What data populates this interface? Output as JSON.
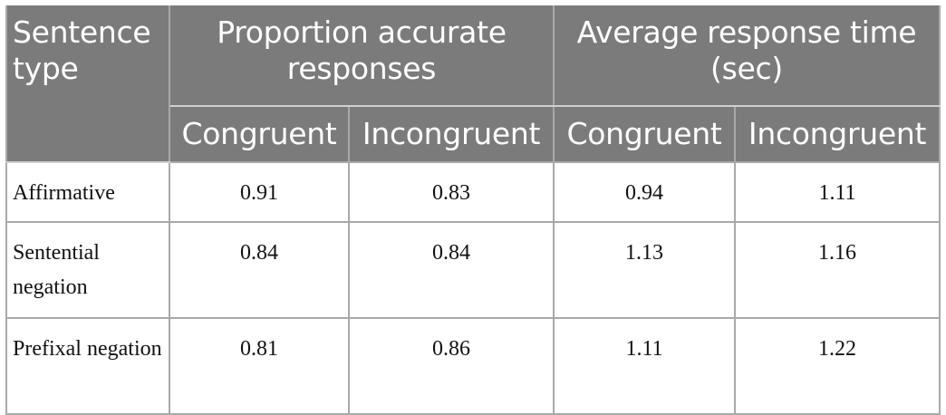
{
  "table": {
    "header": {
      "sentence_type": "Sentence type",
      "accuracy_group": "Proportion accurate responses",
      "rt_group": "Average response time (sec)",
      "sub": {
        "acc_congruent": "Congruent",
        "acc_incongruent": "Incongruent",
        "rt_congruent": "Congruent",
        "rt_incongruent": "Incongruent"
      }
    },
    "rows": [
      {
        "type": "Affirmative",
        "acc_congruent": "0.91",
        "acc_incongruent": "0.83",
        "rt_congruent": "0.94",
        "rt_incongruent": "1.11"
      },
      {
        "type": "Sentential negation",
        "acc_congruent": "0.84",
        "acc_incongruent": "0.84",
        "rt_congruent": "1.13",
        "rt_incongruent": "1.16"
      },
      {
        "type": "Prefixal negation",
        "acc_congruent": "0.81",
        "acc_incongruent": "0.86",
        "rt_congruent": "1.11",
        "rt_incongruent": "1.22"
      }
    ]
  },
  "colors": {
    "header_bg": "#7b7b7b",
    "header_text": "#ffffff",
    "border": "#a9a9a9"
  }
}
